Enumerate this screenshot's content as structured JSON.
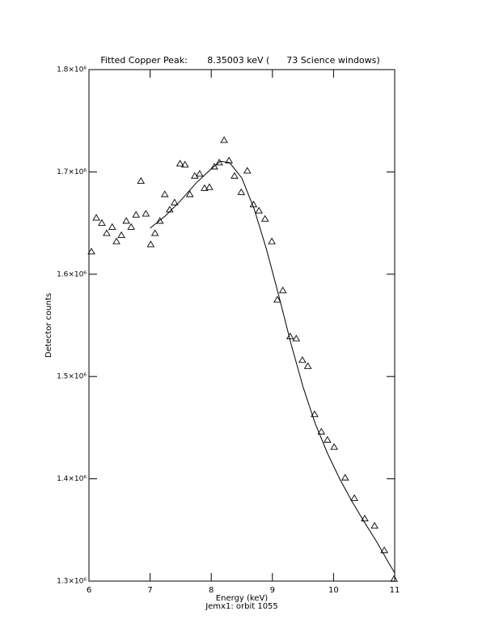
{
  "chart_data": {
    "type": "scatter",
    "title": "Fitted Copper Peak:       8.35003 keV (      73 Science windows)",
    "x_label": "Energy (keV)",
    "subtitle": "Jemx1: orbit 1055",
    "y_label": "Detector counts",
    "xlim": [
      6,
      11
    ],
    "ylim": [
      1300000,
      1800000
    ],
    "xticks": [
      6,
      7,
      8,
      9,
      10,
      11
    ],
    "yticks": [
      {
        "value": 1300000,
        "label": "1.3×10⁶"
      },
      {
        "value": 1400000,
        "label": "1.4×10⁶"
      },
      {
        "value": 1500000,
        "label": "1.5×10⁶"
      },
      {
        "value": 1600000,
        "label": "1.6×10⁶"
      },
      {
        "value": 1700000,
        "label": "1.7×10⁶"
      },
      {
        "value": 1800000,
        "label": "1.8×10⁶"
      }
    ],
    "series": [
      {
        "mode": "triangles",
        "color": "#000000",
        "x": [
          6.04,
          6.12,
          6.21,
          6.29,
          6.38,
          6.45,
          6.53,
          6.61,
          6.69,
          6.77,
          6.85,
          6.93,
          7.01,
          7.08,
          7.16,
          7.24,
          7.32,
          7.4,
          7.49,
          7.57,
          7.65,
          7.73,
          7.81,
          7.89,
          7.97,
          8.05,
          8.13,
          8.21,
          8.29,
          8.38,
          8.49,
          8.59,
          8.69,
          8.78,
          8.88,
          8.99,
          9.08,
          9.17,
          9.29,
          9.39,
          9.49,
          9.58,
          9.69,
          9.8,
          9.9,
          10.01,
          10.19,
          10.34,
          10.51,
          10.67,
          10.83,
          10.99
        ],
        "values": [
          1622000,
          1655000,
          1650000,
          1640000,
          1646000,
          1632000,
          1638000,
          1652000,
          1646000,
          1658000,
          1691000,
          1659000,
          1629000,
          1640000,
          1652000,
          1678000,
          1663000,
          1670000,
          1708000,
          1707000,
          1678000,
          1696000,
          1698000,
          1684000,
          1685000,
          1705000,
          1709000,
          1731000,
          1711000,
          1696000,
          1680000,
          1701000,
          1668000,
          1662000,
          1654000,
          1632000,
          1575000,
          1584000,
          1539000,
          1537000,
          1516000,
          1510000,
          1463000,
          1446000,
          1438000,
          1431000,
          1401000,
          1381000,
          1361000,
          1354000,
          1330000,
          1302000
        ]
      },
      {
        "mode": "line",
        "color": "#000000",
        "x": [
          7.0,
          7.25,
          7.5,
          7.75,
          8.0,
          8.15,
          8.3,
          8.5,
          8.7,
          8.9,
          9.1,
          9.3,
          9.5,
          9.7,
          9.9,
          10.1,
          10.3,
          10.5,
          10.7,
          10.9,
          11.0
        ],
        "values": [
          1645000,
          1657000,
          1672000,
          1689000,
          1703000,
          1710500,
          1709000,
          1694000,
          1664000,
          1625000,
          1580000,
          1533000,
          1490000,
          1454000,
          1425000,
          1400000,
          1378000,
          1358000,
          1339000,
          1318000,
          1308000
        ]
      }
    ]
  }
}
